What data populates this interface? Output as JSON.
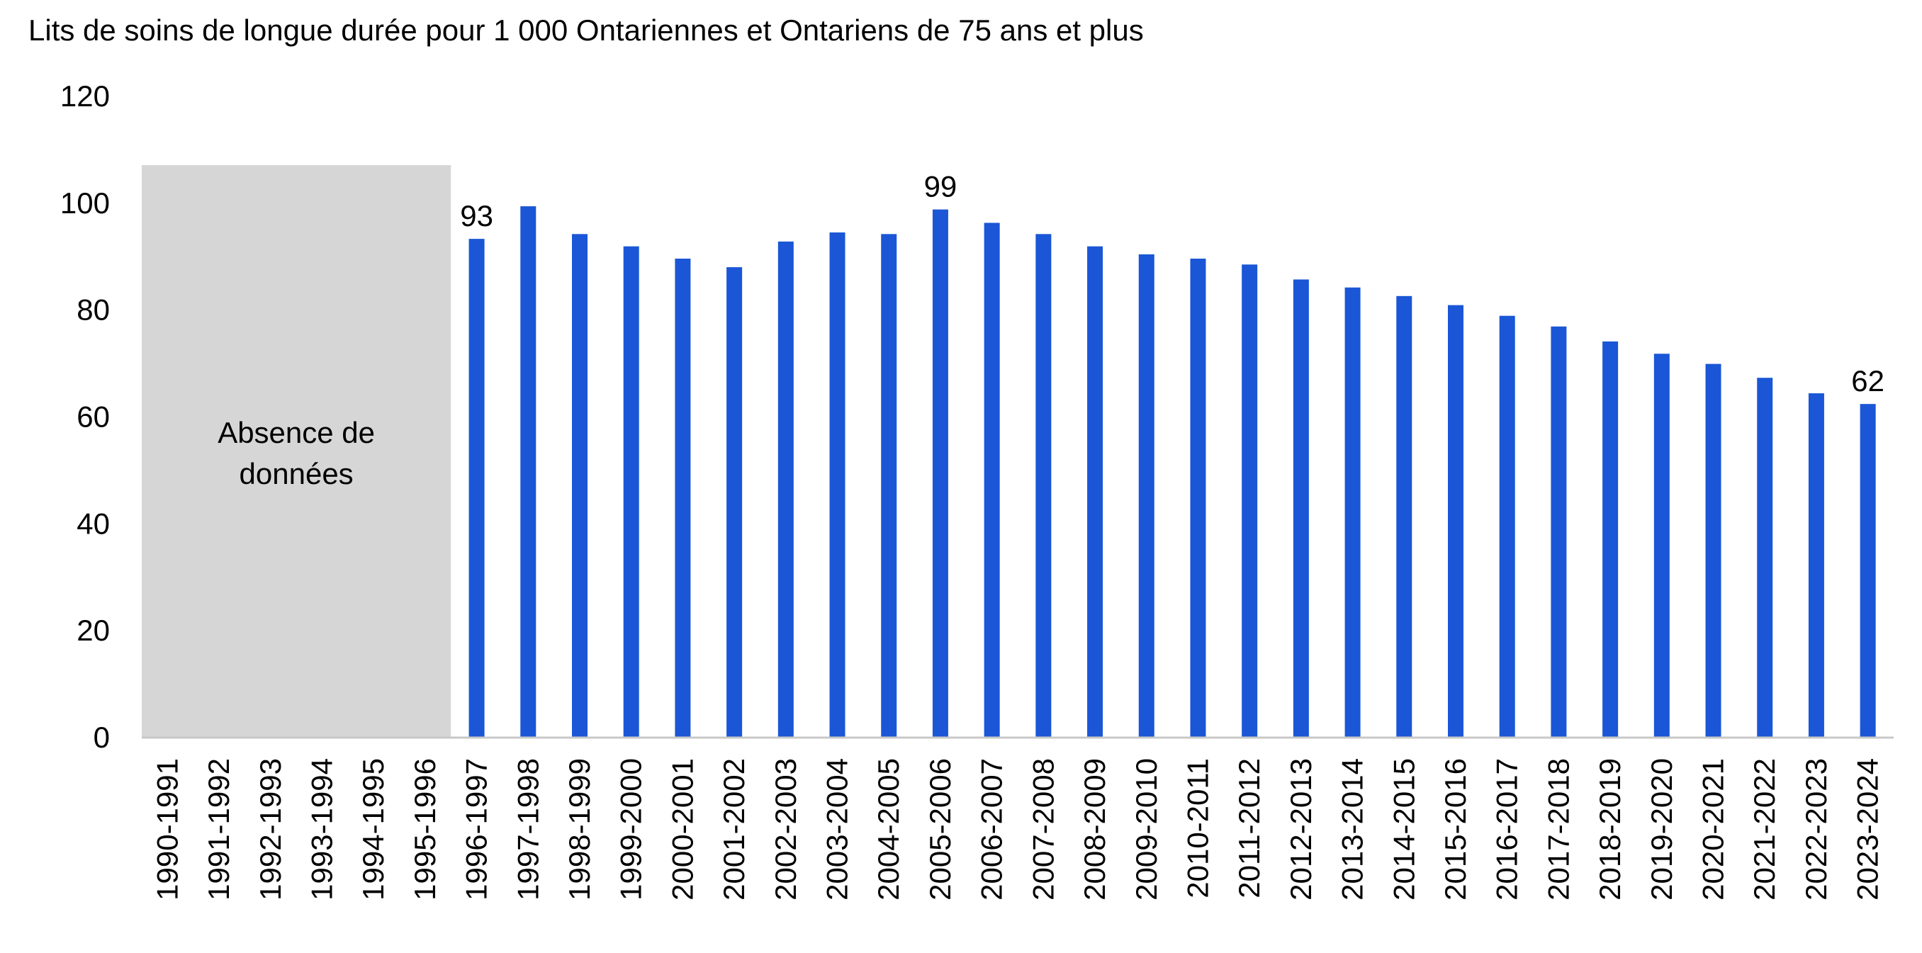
{
  "chart_data": {
    "type": "bar",
    "title": "Lits de soins de longue durée pour 1 000 Ontariennes et Ontariens de 75 ans et plus",
    "xlabel": "",
    "ylabel": "",
    "ylim": [
      0,
      120
    ],
    "yticks": [
      "0",
      "20",
      "40",
      "60",
      "80",
      "100",
      "120"
    ],
    "grid": false,
    "categories": [
      "1990-1991",
      "1991-1992",
      "1992-1993",
      "1993-1994",
      "1994-1995",
      "1995-1996",
      "1996-1997",
      "1997-1998",
      "1998-1999",
      "1999-2000",
      "2000-2001",
      "2001-2002",
      "2002-2003",
      "2003-2004",
      "2004-2005",
      "2005-2006",
      "2006-2007",
      "2007-2008",
      "2008-2009",
      "2009-2010",
      "2010-2011",
      "2011-2012",
      "2012-2013",
      "2013-2014",
      "2014-2015",
      "2015-2016",
      "2016-2017",
      "2017-2018",
      "2018-2019",
      "2019-2020",
      "2020-2021",
      "2021-2022",
      "2022-2023",
      "2023-2024"
    ],
    "values": [
      null,
      null,
      null,
      null,
      null,
      null,
      93.2,
      99.3,
      94.1,
      91.8,
      89.5,
      87.9,
      92.7,
      94.4,
      94.1,
      98.7,
      96.2,
      94.1,
      91.8,
      90.3,
      89.5,
      88.4,
      85.6,
      84.1,
      82.5,
      80.8,
      78.8,
      76.8,
      74.0,
      71.7,
      69.8,
      67.2,
      64.3,
      62.3
    ],
    "data_labels": [
      {
        "category": "1996-1997",
        "text": "93"
      },
      {
        "category": "2005-2006",
        "text": "99"
      },
      {
        "category": "2023-2024",
        "text": "62"
      }
    ],
    "no_data_region": {
      "from_category": "1990-1991",
      "to_category": "1995-1996",
      "label_lines": [
        "Absence de",
        "données"
      ]
    },
    "colors": {
      "bar": "#1a56d6",
      "no_data_fill": "#d6d6d6",
      "axis": "#c8c8c8"
    }
  }
}
